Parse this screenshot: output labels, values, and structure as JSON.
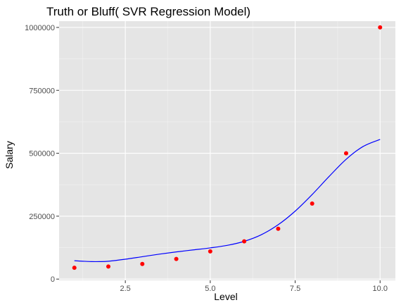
{
  "chart_data": {
    "type": "scatter",
    "title": "Truth or Bluff( SVR Regression Model)",
    "xlabel": "Level",
    "ylabel": "Salary",
    "xlim": [
      0.55,
      10.45
    ],
    "ylim": [
      -5000,
      1025000
    ],
    "x_ticks": [
      2.5,
      5.0,
      7.5,
      10.0
    ],
    "x_tick_labels": [
      "2.5",
      "5.0",
      "7.5",
      "10.0"
    ],
    "y_ticks": [
      0,
      250000,
      500000,
      750000,
      1000000
    ],
    "y_tick_labels": [
      "0",
      "250000",
      "500000",
      "750000",
      "1000000"
    ],
    "grid": true,
    "series": [
      {
        "kind": "points",
        "color": "#ff0000",
        "x": [
          1,
          2,
          3,
          4,
          5,
          6,
          7,
          8,
          9,
          10
        ],
        "y": [
          45000,
          50000,
          60000,
          80000,
          110000,
          150000,
          200000,
          300000,
          500000,
          1000000
        ]
      },
      {
        "kind": "line",
        "color": "#0000ff",
        "x": [
          1,
          1.25,
          1.5,
          1.75,
          2,
          2.5,
          3,
          3.5,
          4,
          4.5,
          5,
          5.5,
          6,
          6.5,
          7,
          7.5,
          8,
          8.5,
          9,
          9.5,
          10
        ],
        "y": [
          73000,
          71000,
          69500,
          69500,
          71000,
          79000,
          89000,
          99000,
          108000,
          116000,
          124000,
          134000,
          150000,
          176000,
          216000,
          270000,
          336000,
          408000,
          476000,
          527000,
          555000
        ]
      }
    ]
  },
  "colors": {
    "panel_background": "#e5e5e5",
    "grid_major": "#ffffff",
    "grid_minor": "#f2f2f2"
  }
}
